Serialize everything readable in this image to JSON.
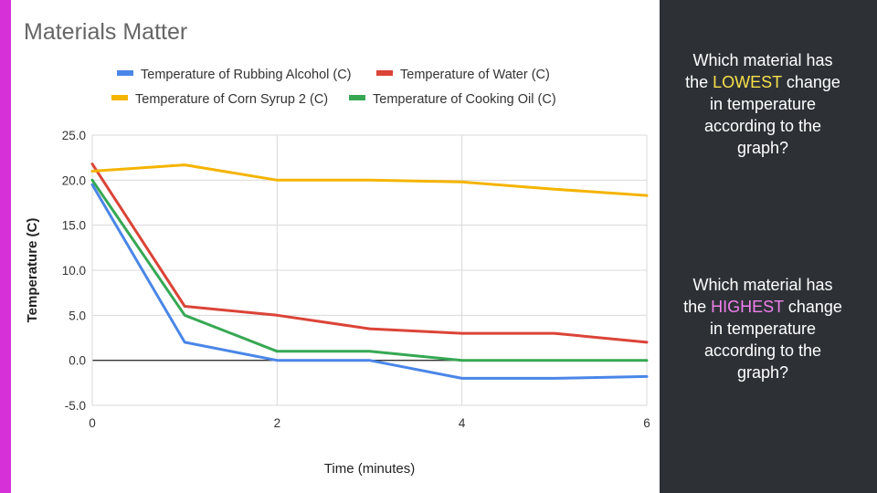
{
  "colors": {
    "accent": "#d631d8",
    "panel_bg": "#2d3136",
    "highlight_low": "#f7e04a",
    "highlight_high": "#f080ec"
  },
  "questions": [
    {
      "before": "Which material has the ",
      "highlight": "LOWEST",
      "after": " change in temperature according to the graph?"
    },
    {
      "before": "Which material has the ",
      "highlight": "HIGHEST",
      "after": " change in temperature according to the graph?"
    }
  ],
  "chart_data": {
    "type": "line",
    "title": "Materials  Matter",
    "xlabel": "Time (minutes)",
    "ylabel": "Temperature (C)",
    "xlim": [
      0,
      6
    ],
    "ylim": [
      -5,
      25
    ],
    "x_ticks": [
      "0",
      "2",
      "4",
      "6"
    ],
    "y_ticks": [
      "25.0",
      "20.0",
      "15.0",
      "10.0",
      "5.0",
      "0.0",
      "-5.0"
    ],
    "grid": true,
    "legend_position": "top",
    "x": [
      0,
      1,
      2,
      3,
      4,
      5,
      6
    ],
    "series": [
      {
        "name": "Temperature of Rubbing Alcohol (C)",
        "color": "#4a86e8",
        "values": [
          19.5,
          2,
          0,
          0,
          -2,
          -2,
          -1.8
        ]
      },
      {
        "name": "Temperature of Water (C)",
        "color": "#db4437",
        "values": [
          21.8,
          6,
          5,
          3.5,
          3,
          3,
          2
        ]
      },
      {
        "name": "Temperature of Corn Syrup 2 (C)",
        "color": "#f4b400",
        "values": [
          21,
          21.7,
          20,
          20,
          19.8,
          19,
          18.3
        ]
      },
      {
        "name": "Temperature of Cooking Oil (C)",
        "color": "#36a853",
        "values": [
          20,
          5,
          1,
          1,
          0,
          0,
          0
        ]
      }
    ]
  }
}
